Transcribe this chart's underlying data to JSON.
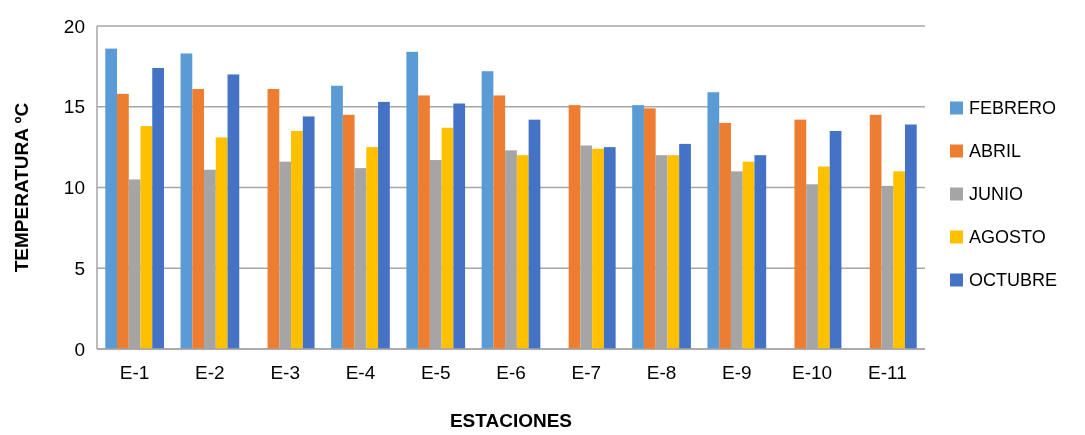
{
  "chart_data": {
    "type": "bar",
    "xlabel": "ESTACIONES",
    "ylabel": "TEMPERATURA ºC",
    "categories": [
      "E-1",
      "E-2",
      "E-3",
      "E-4",
      "E-5",
      "E-6",
      "E-7",
      "E-8",
      "E-9",
      "E-10",
      "E-11"
    ],
    "series": [
      {
        "name": "FEBRERO",
        "color": "#5b9bd5",
        "values": [
          18.6,
          18.3,
          null,
          16.3,
          18.4,
          17.2,
          null,
          15.1,
          15.9,
          null,
          null
        ]
      },
      {
        "name": "ABRIL",
        "color": "#ed7d31",
        "values": [
          15.8,
          16.1,
          16.1,
          14.5,
          15.7,
          15.7,
          15.1,
          14.9,
          14.0,
          14.2,
          14.5
        ]
      },
      {
        "name": "JUNIO",
        "color": "#a5a5a5",
        "values": [
          10.5,
          11.1,
          11.6,
          11.2,
          11.7,
          12.3,
          12.6,
          12.0,
          11.0,
          10.2,
          10.1
        ]
      },
      {
        "name": "AGOSTO",
        "color": "#ffc000",
        "values": [
          13.8,
          13.1,
          13.5,
          12.5,
          13.7,
          12.0,
          12.4,
          12.0,
          11.6,
          11.3,
          11.0
        ]
      },
      {
        "name": "OCTUBRE",
        "color": "#4472c4",
        "values": [
          17.4,
          17.0,
          14.4,
          15.3,
          15.2,
          14.2,
          12.5,
          12.7,
          12.0,
          13.5,
          13.9
        ]
      }
    ],
    "ylim": [
      0,
      20
    ],
    "yticks": [
      0,
      5,
      10,
      15,
      20
    ],
    "grid": "y",
    "legend": "right"
  }
}
